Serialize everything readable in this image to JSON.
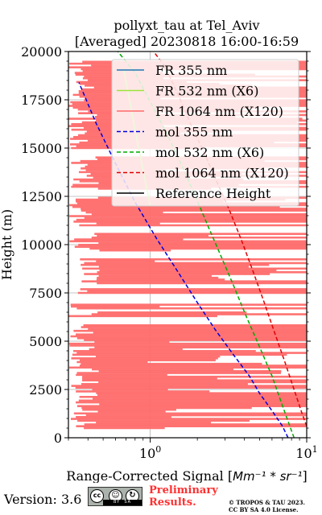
{
  "chart_data": {
    "type": "line",
    "title": "pollyxt_tau at Tel_Aviv",
    "subtitle": "[Averaged] 20230818 16:00-16:59",
    "xlabel": "Range-Corrected Signal [",
    "xlabel_math": "Mm⁻¹ * sr⁻¹",
    "xlabel_end": "]",
    "ylabel": "Height (m)",
    "xscale": "log",
    "xlim": [
      0.3,
      10
    ],
    "ylim": [
      0,
      20000
    ],
    "xtick_labels": [
      "10",
      "10"
    ],
    "xtick_exponents": [
      "0",
      "1"
    ],
    "yticks": [
      "0",
      "2500",
      "5000",
      "7500",
      "10000",
      "12500",
      "15000",
      "17500",
      "20000"
    ],
    "grid": true,
    "legend_position": "top-right",
    "series": [
      {
        "name": "FR 355 nm",
        "color": "#1f77b4",
        "style": "solid",
        "x": [],
        "y": []
      },
      {
        "name": "FR 532 nm (X6)",
        "color": "#9be33b",
        "style": "solid",
        "x": [
          1.0,
          0.82,
          0.68
        ],
        "y": [
          12000,
          15500,
          19000
        ]
      },
      {
        "name": "FR 1064 nm (X120)",
        "color": "#ff6b6b",
        "style": "solid",
        "note": "noisy signal spanning full x range at many heights",
        "bands": [
          [
            500,
            5900
          ],
          [
            6300,
            6500
          ],
          [
            6700,
            6900
          ],
          [
            7500,
            7700
          ],
          [
            8000,
            9300
          ],
          [
            9700,
            10600
          ],
          [
            11000,
            12500
          ],
          [
            12900,
            14600
          ],
          [
            15000,
            19500
          ]
        ]
      },
      {
        "name": "mol 355 nm",
        "color": "#0000dd",
        "style": "dashed",
        "x": [
          7.6,
          7.0,
          6.0,
          5.0,
          4.3,
          3.4,
          2.6,
          2.0,
          1.5,
          1.1,
          0.8,
          0.6,
          0.45,
          0.35
        ],
        "y": [
          0,
          600,
          1400,
          2300,
          3200,
          4300,
          5600,
          7000,
          8600,
          10300,
          12200,
          14200,
          16300,
          18400
        ]
      },
      {
        "name": "mol 532 nm (X6)",
        "color": "#00aa00",
        "style": "dashed",
        "x": [
          8.3,
          7.8,
          6.9,
          6.0,
          5.0,
          4.1,
          3.4,
          2.8,
          2.3,
          1.9,
          1.55,
          1.25,
          1.0,
          0.8,
          0.62
        ],
        "y": [
          0,
          600,
          1800,
          3200,
          4700,
          6300,
          7900,
          9500,
          11100,
          12700,
          14300,
          15900,
          17400,
          18900,
          20000
        ]
      },
      {
        "name": "mol 1064 nm (X120)",
        "color": "#dd0000",
        "style": "dashed",
        "x": [
          10.0,
          9.3,
          8.3,
          7.2,
          6.2,
          5.3,
          4.5,
          3.8,
          3.2,
          2.65,
          2.2,
          1.8,
          1.5,
          1.25,
          1.05
        ],
        "y": [
          600,
          1300,
          2500,
          4000,
          5500,
          7100,
          8700,
          10300,
          11800,
          13300,
          14800,
          16300,
          17800,
          19200,
          20000
        ]
      },
      {
        "name": "Reference Height",
        "color": "#000000",
        "style": "solid",
        "x": [],
        "y": []
      }
    ]
  },
  "footer": {
    "version": "Version: 3.6",
    "prelim_line1": "Preliminary",
    "prelim_line2": "Results.",
    "copyright_line1": "© TROPOS & TAU 2023.",
    "copyright_line2": "CC BY SA 4.0 License.",
    "cc_label": "cc",
    "by_label": "BY",
    "sa_label": "SA"
  }
}
